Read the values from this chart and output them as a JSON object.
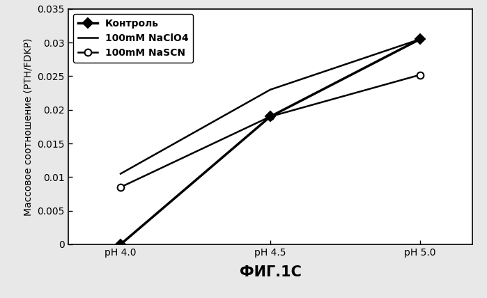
{
  "x_labels": [
    "pH 4.0",
    "pH 4.5",
    "pH 5.0"
  ],
  "x_positions": [
    0,
    1,
    2
  ],
  "series": [
    {
      "label": "Контроль",
      "values": [
        0.0,
        0.019,
        0.0305
      ],
      "color": "#000000",
      "linewidth": 2.5,
      "marker": "D",
      "markersize": 7,
      "markerfacecolor": "#000000",
      "zorder": 3
    },
    {
      "label": "100mM NaClO4",
      "values": [
        0.0105,
        0.023,
        0.0305
      ],
      "color": "#000000",
      "linewidth": 1.8,
      "marker": null,
      "markersize": 0,
      "markerfacecolor": "#000000",
      "zorder": 2
    },
    {
      "label": "100mM NaSCN",
      "values": [
        0.0085,
        0.019,
        0.0252
      ],
      "color": "#000000",
      "linewidth": 1.8,
      "marker": "o",
      "markersize": 7,
      "markerfacecolor": "#ffffff",
      "zorder": 2
    }
  ],
  "ylabel": "Массовое соотношение (PTH/FDKP)",
  "xlabel": "ФИГ.1C",
  "ylim": [
    0,
    0.035
  ],
  "yticks": [
    0,
    0.005,
    0.01,
    0.015,
    0.02,
    0.025,
    0.03,
    0.035
  ],
  "background_color": "#e8e8e8",
  "plot_background_color": "#ffffff",
  "legend_fontsize": 10,
  "ylabel_fontsize": 10,
  "tick_fontsize": 10,
  "xlabel_fontsize": 15
}
